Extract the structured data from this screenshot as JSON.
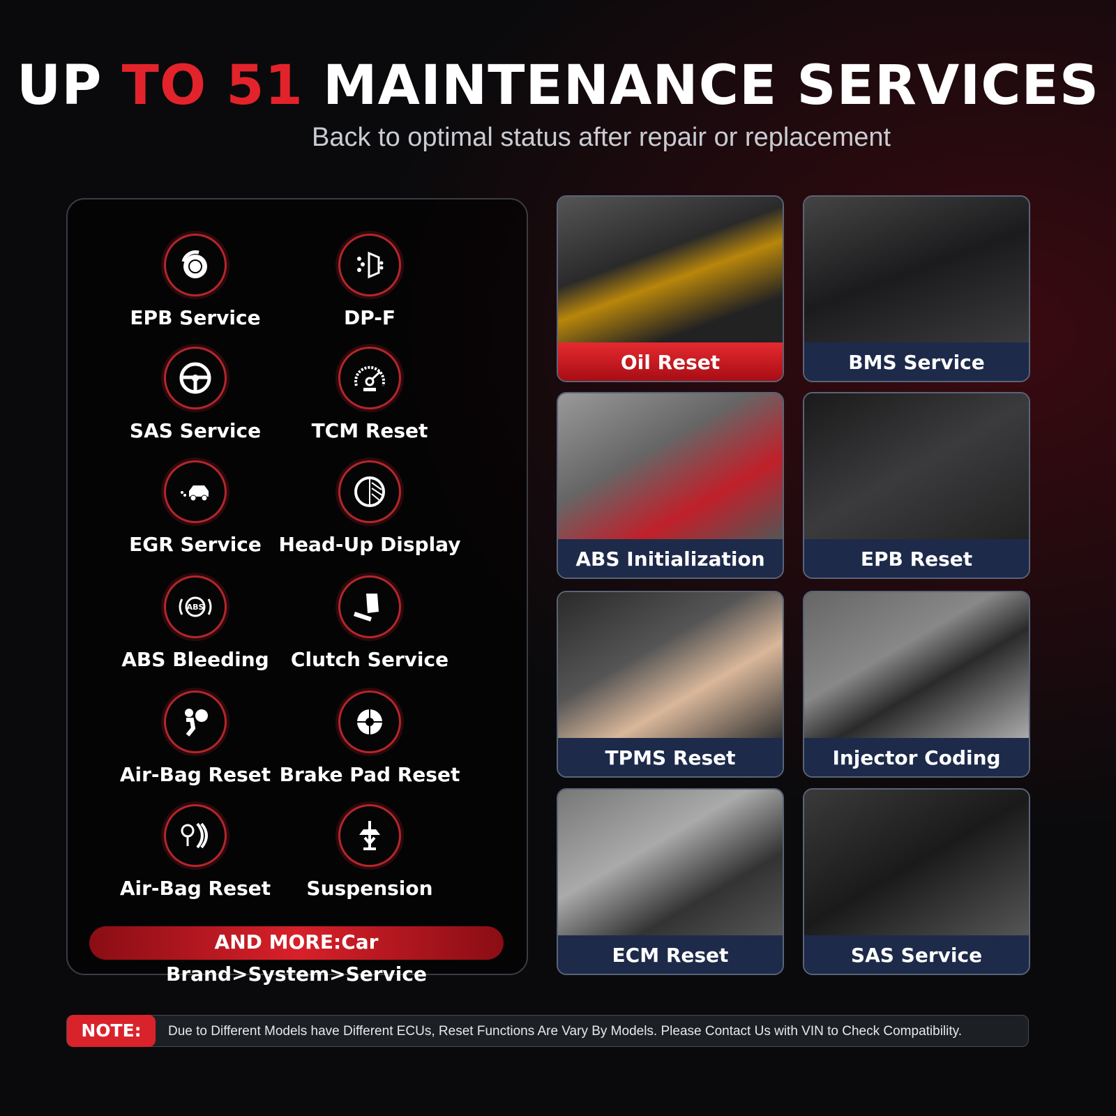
{
  "header": {
    "title_part1": "UP ",
    "title_part2": "TO 51",
    "title_part3": " MAINTENANCE SERVICES",
    "subtitle": "Back to optimal status after repair or replacement"
  },
  "colors": {
    "accent": "#e3232b",
    "caption_bg": "#1d2a4a"
  },
  "services": [
    {
      "label": "EPB Service",
      "icon": "brake-disc-icon"
    },
    {
      "label": "DP-F",
      "icon": "dpf-filter-icon"
    },
    {
      "label": "SAS Service",
      "icon": "steering-wheel-icon"
    },
    {
      "label": "TCM Reset",
      "icon": "speedometer-icon"
    },
    {
      "label": "EGR Service",
      "icon": "car-exhaust-icon"
    },
    {
      "label": "Head-Up Display",
      "icon": "hud-circle-icon"
    },
    {
      "label": "ABS Bleeding",
      "icon": "abs-icon"
    },
    {
      "label": "Clutch Service",
      "icon": "clutch-pedal-icon"
    },
    {
      "label": "Air-Bag Reset",
      "icon": "airbag-icon"
    },
    {
      "label": "Brake Pad Reset",
      "icon": "brake-pad-icon"
    },
    {
      "label": "Air-Bag Reset",
      "icon": "tire-pressure-icon"
    },
    {
      "label": "Suspension",
      "icon": "car-lift-icon"
    }
  ],
  "more_label": "AND MORE:Car Brand>System>Service",
  "cards": [
    {
      "label": "Oil Reset"
    },
    {
      "label": "BMS Service"
    },
    {
      "label": "ABS Initialization"
    },
    {
      "label": "EPB Reset"
    },
    {
      "label": "TPMS Reset"
    },
    {
      "label": "Injector Coding"
    },
    {
      "label": "ECM  Reset"
    },
    {
      "label": "SAS Service"
    }
  ],
  "note": {
    "tag": "NOTE:",
    "text": "Due to Different Models have Different ECUs, Reset Functions Are Vary By Models. Please Contact Us with VIN to Check Compatibility."
  }
}
